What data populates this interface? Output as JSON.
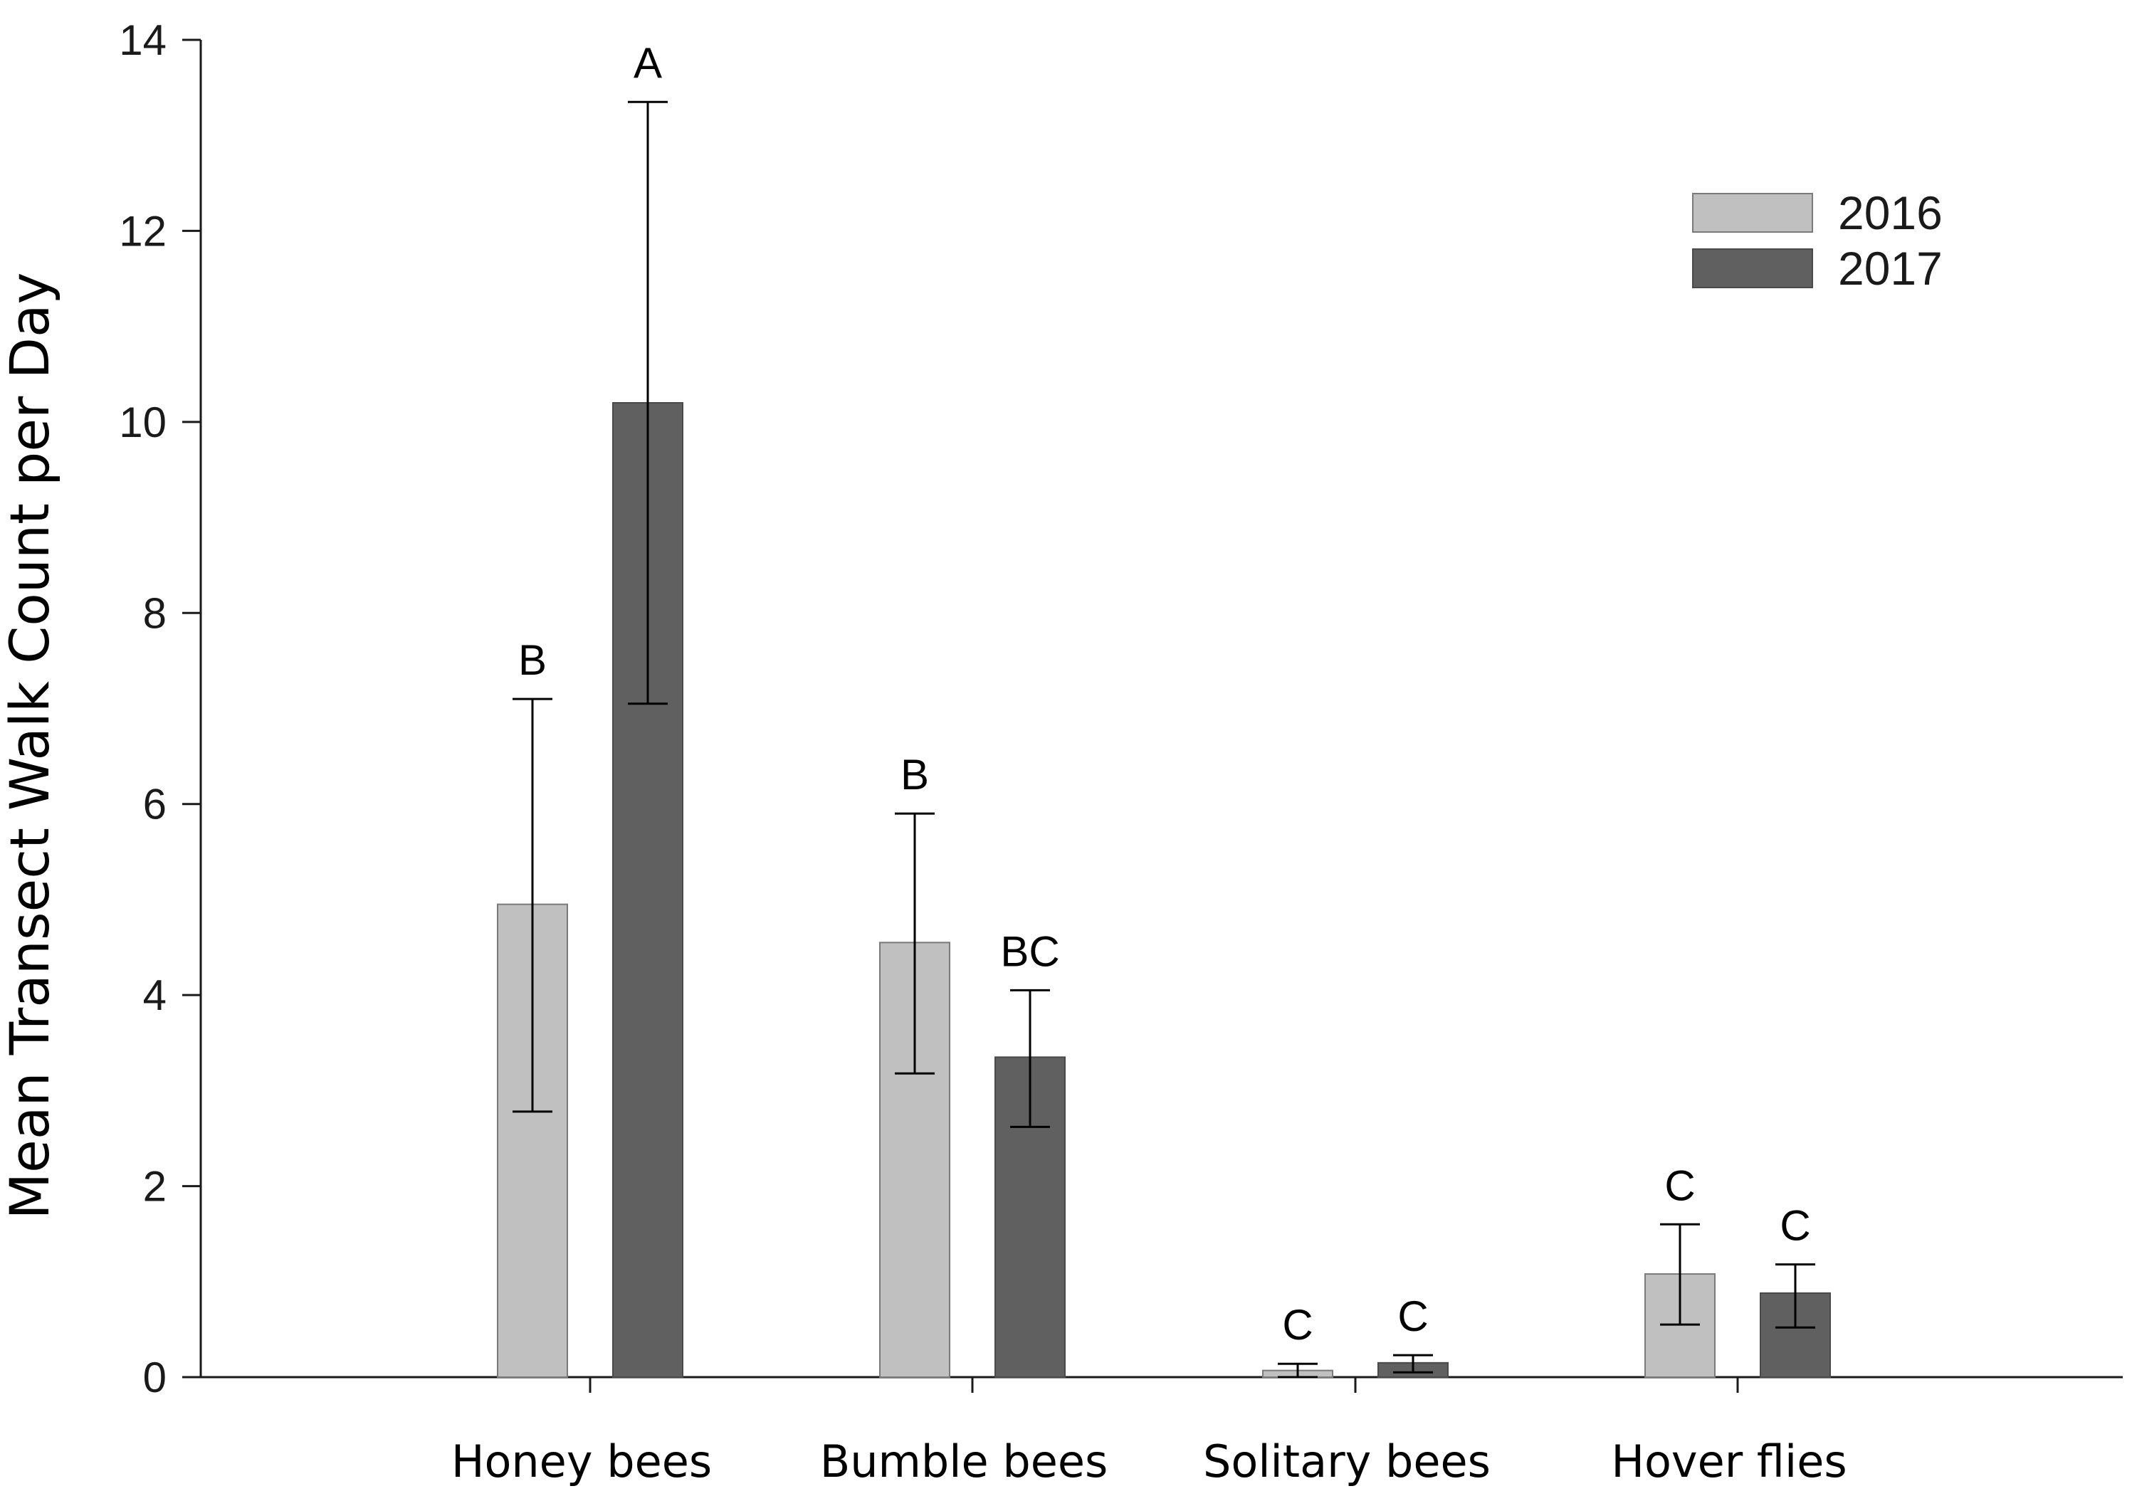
{
  "chart_data": {
    "type": "bar",
    "title": "",
    "xlabel": "",
    "ylabel": "Mean Transect Walk Count per Day",
    "ylim": [
      0,
      14
    ],
    "yticks": [
      "0",
      "2",
      "4",
      "6",
      "8",
      "10",
      "12",
      "14"
    ],
    "categories": [
      "Honey bees",
      "Bumble bees",
      "Solitary bees",
      "Hover flies"
    ],
    "legend_position": "top-right",
    "series": [
      {
        "name": "2016",
        "color": "#c0c0c0",
        "values": [
          4.95,
          4.55,
          0.07,
          1.08
        ],
        "error_low": [
          2.78,
          3.18,
          0.0,
          0.55
        ],
        "error_high": [
          7.1,
          5.9,
          0.14,
          1.6
        ],
        "labels": [
          "B",
          "B",
          "C",
          "C"
        ]
      },
      {
        "name": "2017",
        "color": "#606060",
        "values": [
          10.2,
          3.35,
          0.15,
          0.88
        ],
        "error_low": [
          7.05,
          2.62,
          0.05,
          0.52
        ],
        "error_high": [
          13.35,
          4.05,
          0.23,
          1.18
        ],
        "labels": [
          "A",
          "BC",
          "C",
          "C"
        ]
      }
    ],
    "grid": false
  }
}
